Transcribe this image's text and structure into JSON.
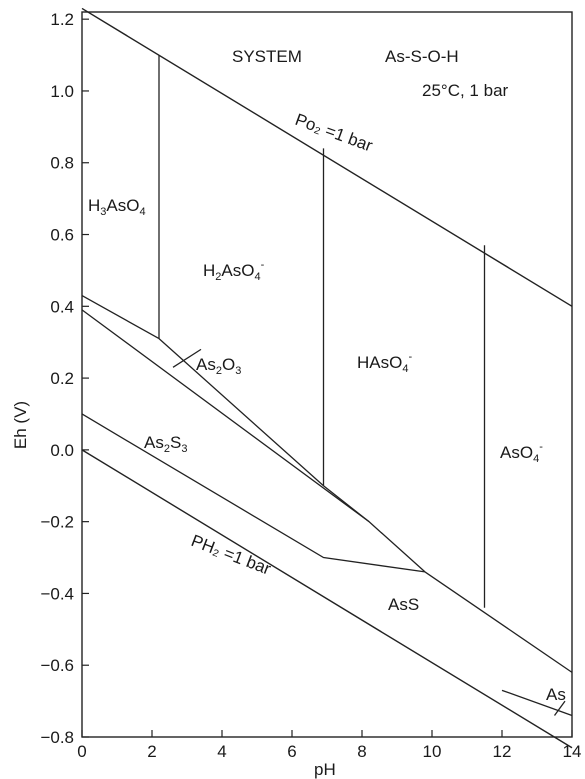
{
  "header": {
    "system_label": "SYSTEM",
    "system_name": "As-S-O-H",
    "conditions": "25°C, 1 bar"
  },
  "axes": {
    "xlabel": "pH",
    "ylabel": "Eh (V)",
    "xlim": [
      0,
      14
    ],
    "ylim": [
      -0.8,
      1.22
    ],
    "x_ticks": [
      "0",
      "2",
      "4",
      "6",
      "8",
      "10",
      "12",
      "14"
    ],
    "y_ticks": [
      "-0.8",
      "-0.6",
      "-0.4",
      "-0.2",
      "0.0",
      "0.2",
      "0.4",
      "0.6",
      "0.8",
      "1.0",
      "1.2"
    ]
  },
  "lines": {
    "o2": {
      "label": "Po₂ =1 bar",
      "points": [
        [
          0,
          1.23
        ],
        [
          14,
          0.4
        ]
      ]
    },
    "h2": {
      "label": "PH₂ =1 bar",
      "points": [
        [
          0,
          0.0
        ],
        [
          14,
          -0.83
        ]
      ]
    }
  },
  "regions": {
    "h3aso4": {
      "base": "H",
      "sub1": "3",
      "mid": "AsO",
      "sub2": "4",
      "sup": ""
    },
    "h2aso4": {
      "base": "H",
      "sub1": "2",
      "mid": "AsO",
      "sub2": "4",
      "sup": "-"
    },
    "haso4": {
      "base": "HAsO",
      "sub1": "4",
      "sup": "-"
    },
    "aso4": {
      "base": "AsO",
      "sub1": "4",
      "sup": "-"
    },
    "as2o3": {
      "base": "As",
      "sub1": "2",
      "mid": "O",
      "sub2": "3"
    },
    "as2s3": {
      "base": "As",
      "sub1": "2",
      "mid": "S",
      "sub2": "3"
    },
    "ass": "AsS",
    "as": "As"
  },
  "boundaries": [
    {
      "name": "h3aso4-h2aso4",
      "points": [
        [
          2.2,
          1.1
        ],
        [
          2.2,
          0.31
        ]
      ]
    },
    {
      "name": "h2aso4-haso4",
      "points": [
        [
          6.9,
          0.84
        ],
        [
          6.9,
          -0.1
        ]
      ]
    },
    {
      "name": "haso4-aso4",
      "points": [
        [
          11.5,
          0.57
        ],
        [
          11.5,
          -0.44
        ]
      ]
    },
    {
      "name": "h3aso4-as2o3-upper",
      "points": [
        [
          0,
          0.43
        ],
        [
          2.2,
          0.31
        ]
      ]
    },
    {
      "name": "as2o3-h2aso4",
      "points": [
        [
          2.2,
          0.31
        ],
        [
          6.9,
          -0.1
        ],
        [
          8.2,
          -0.2
        ]
      ]
    },
    {
      "name": "as2s3-as2o3",
      "points": [
        [
          0,
          0.39
        ],
        [
          8.2,
          -0.2
        ],
        [
          9.8,
          -0.34
        ]
      ]
    },
    {
      "name": "as2s3-ass",
      "points": [
        [
          0,
          0.1
        ],
        [
          6.9,
          -0.3
        ],
        [
          9.8,
          -0.34
        ]
      ]
    },
    {
      "name": "ass-oxidized",
      "points": [
        [
          9.8,
          -0.34
        ],
        [
          14,
          -0.62
        ]
      ]
    },
    {
      "name": "ass-as",
      "points": [
        [
          12.0,
          -0.67
        ],
        [
          14,
          -0.74
        ]
      ]
    },
    {
      "name": "as2o3-leader",
      "points": [
        [
          2.6,
          0.23
        ],
        [
          3.4,
          0.28
        ]
      ]
    },
    {
      "name": "as-leader",
      "points": [
        [
          13.5,
          -0.74
        ],
        [
          13.8,
          -0.7
        ]
      ]
    }
  ]
}
